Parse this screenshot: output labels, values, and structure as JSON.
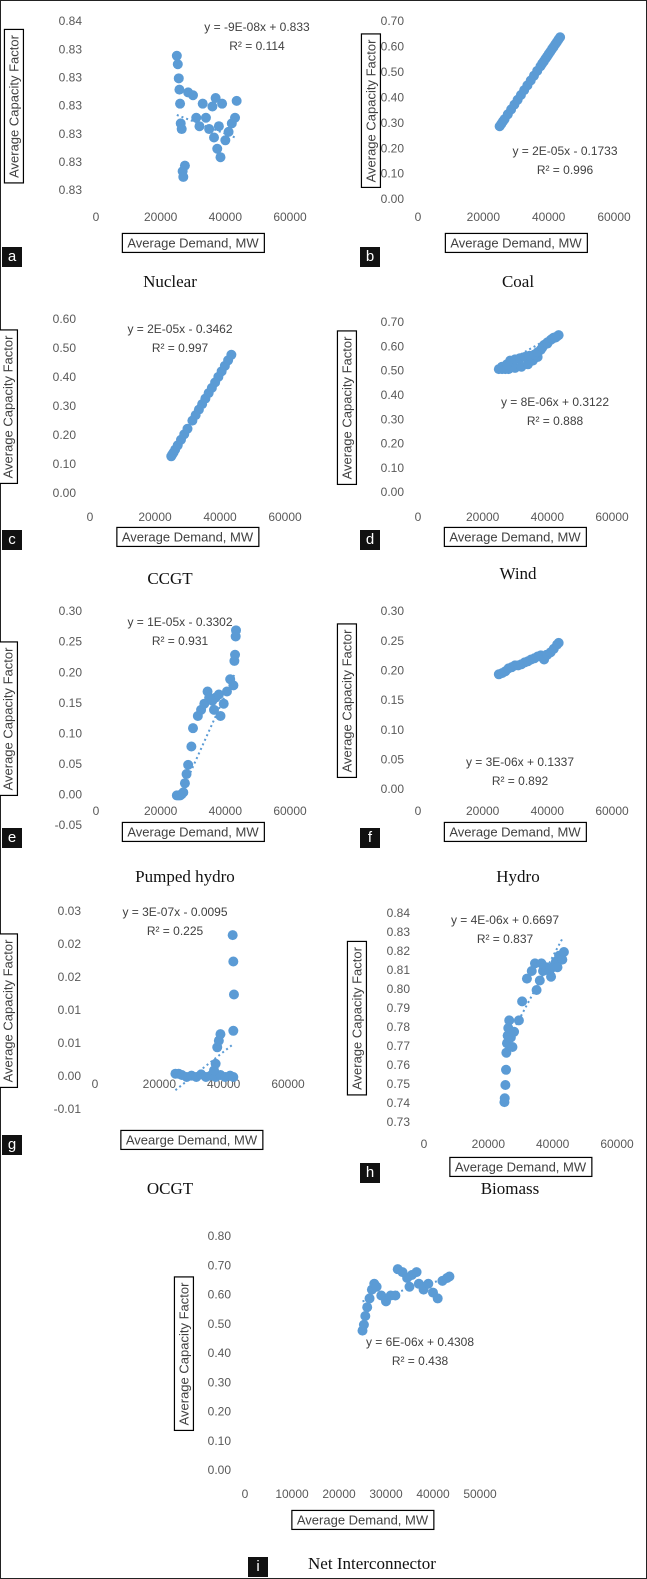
{
  "chart_data": [
    {
      "type": "scatter",
      "title": "Nuclear",
      "panel_label": "a",
      "xlabel": "Average Demand, MW",
      "ylabel": "Average Capacity Factor",
      "annotations": [
        "y = -9E-08x + 0.833",
        "R² = 0.114"
      ],
      "color": "#5b9bd5",
      "xlim": [
        0,
        60000
      ],
      "xticks": [
        0,
        20000,
        40000,
        60000
      ],
      "ylim": [
        0.829,
        0.835
      ],
      "yticks": [
        {
          "value": 0.829,
          "label": "0.83"
        },
        {
          "value": 0.83,
          "label": "0.83"
        },
        {
          "value": 0.831,
          "label": "0.83"
        },
        {
          "value": 0.832,
          "label": "0.83"
        },
        {
          "value": 0.833,
          "label": "0.83"
        },
        {
          "value": 0.834,
          "label": "0.83"
        },
        {
          "value": 0.835,
          "label": "0.84"
        }
      ],
      "x": [
        25000,
        25300,
        25600,
        25800,
        26000,
        26200,
        26500,
        26800,
        27000,
        27500,
        28500,
        30000,
        31000,
        32000,
        33000,
        34000,
        35000,
        36000,
        36500,
        37000,
        37500,
        38000,
        38500,
        39000,
        40000,
        41000,
        42000,
        43000,
        43500
      ],
      "values": [
        0.8338,
        0.8335,
        0.833,
        0.8326,
        0.8321,
        0.8314,
        0.8312,
        0.8297,
        0.8295,
        0.8299,
        0.8325,
        0.8324,
        0.8316,
        0.8313,
        0.8321,
        0.8316,
        0.8312,
        0.832,
        0.8309,
        0.8323,
        0.8305,
        0.8313,
        0.8302,
        0.8321,
        0.8308,
        0.8311,
        0.8314,
        0.8316,
        0.8322
      ],
      "trendline": {
        "x": [
          25000,
          43000
        ],
        "values": [
          0.8317,
          0.8309
        ]
      }
    },
    {
      "type": "scatter",
      "title": "Coal",
      "panel_label": "b",
      "xlabel": "Average Demand, MW",
      "ylabel": "Average Capacity Factor",
      "annotations": [
        "y = 2E-05x - 0.1733",
        "R² = 0.996"
      ],
      "color": "#5b9bd5",
      "xlim": [
        0,
        60000
      ],
      "xticks": [
        0,
        20000,
        40000,
        60000
      ],
      "ylim": [
        0,
        0.7
      ],
      "yticks": [
        {
          "value": 0,
          "label": "0.00"
        },
        {
          "value": 0.1,
          "label": "0.10"
        },
        {
          "value": 0.2,
          "label": "0.20"
        },
        {
          "value": 0.3,
          "label": "0.30"
        },
        {
          "value": 0.4,
          "label": "0.40"
        },
        {
          "value": 0.5,
          "label": "0.50"
        },
        {
          "value": 0.6,
          "label": "0.60"
        },
        {
          "value": 0.7,
          "label": "0.70"
        }
      ],
      "x": [
        25000,
        25500,
        26000,
        26500,
        27500,
        28500,
        29500,
        30500,
        31500,
        32500,
        33500,
        34500,
        35500,
        36500,
        37500,
        38000,
        38500,
        39000,
        39500,
        40000,
        40500,
        41000,
        41500,
        42000,
        42500,
        43000,
        43500
      ],
      "values": [
        0.29,
        0.299,
        0.309,
        0.318,
        0.337,
        0.356,
        0.375,
        0.394,
        0.413,
        0.432,
        0.451,
        0.47,
        0.489,
        0.508,
        0.526,
        0.536,
        0.545,
        0.555,
        0.564,
        0.574,
        0.583,
        0.593,
        0.602,
        0.612,
        0.621,
        0.631,
        0.64
      ],
      "trendline": {
        "x": [
          25000,
          43500
        ],
        "values": [
          0.29,
          0.64
        ]
      }
    },
    {
      "type": "scatter",
      "title": "CCGT",
      "panel_label": "c",
      "xlabel": "Average Demand, MW",
      "ylabel": "Average Capacity Factor",
      "annotations": [
        "y = 2E-05x - 0.3462",
        "R² = 0.997"
      ],
      "color": "#5b9bd5",
      "xlim": [
        0,
        60000
      ],
      "xticks": [
        0,
        20000,
        40000,
        60000
      ],
      "ylim": [
        0,
        0.6
      ],
      "yticks": [
        {
          "value": 0,
          "label": "0.00"
        },
        {
          "value": 0.1,
          "label": "0.10"
        },
        {
          "value": 0.2,
          "label": "0.20"
        },
        {
          "value": 0.3,
          "label": "0.30"
        },
        {
          "value": 0.4,
          "label": "0.40"
        },
        {
          "value": 0.5,
          "label": "0.50"
        },
        {
          "value": 0.6,
          "label": "0.60"
        }
      ],
      "x": [
        25000,
        25300,
        25700,
        26200,
        27000,
        28000,
        29000,
        30000,
        31500,
        32500,
        33500,
        34500,
        35500,
        36500,
        37500,
        38500,
        39500,
        40500,
        41500,
        42500,
        43500
      ],
      "values": [
        0.13,
        0.136,
        0.143,
        0.153,
        0.168,
        0.187,
        0.206,
        0.225,
        0.253,
        0.272,
        0.291,
        0.31,
        0.329,
        0.348,
        0.366,
        0.385,
        0.404,
        0.423,
        0.442,
        0.461,
        0.48
      ],
      "trendline": {
        "x": [
          25000,
          43500
        ],
        "values": [
          0.13,
          0.48
        ]
      }
    },
    {
      "type": "scatter",
      "title": "Wind",
      "panel_label": "d",
      "xlabel": "Average Demand, MW",
      "ylabel": "Average Capacity Factor",
      "annotations": [
        "y = 8E-06x + 0.3122",
        "R² = 0.888"
      ],
      "color": "#5b9bd5",
      "xlim": [
        0,
        60000
      ],
      "xticks": [
        0,
        20000,
        40000,
        60000
      ],
      "ylim": [
        0,
        0.7
      ],
      "yticks": [
        {
          "value": 0,
          "label": "0.00"
        },
        {
          "value": 0.1,
          "label": "0.10"
        },
        {
          "value": 0.2,
          "label": "0.20"
        },
        {
          "value": 0.3,
          "label": "0.30"
        },
        {
          "value": 0.4,
          "label": "0.40"
        },
        {
          "value": 0.5,
          "label": "0.50"
        },
        {
          "value": 0.6,
          "label": "0.60"
        },
        {
          "value": 0.7,
          "label": "0.70"
        }
      ],
      "x": [
        25000,
        26000,
        27000,
        28000,
        30000,
        32000,
        34000,
        35500,
        37000,
        38000,
        39000,
        40000,
        41000,
        42000,
        43000,
        43500,
        26000,
        27500,
        28500,
        30000,
        31500,
        33000,
        34500,
        36000,
        37000,
        38500,
        40000,
        41500,
        42500
      ],
      "values": [
        0.51,
        0.51,
        0.51,
        0.51,
        0.515,
        0.52,
        0.53,
        0.545,
        0.56,
        0.59,
        0.61,
        0.62,
        0.63,
        0.64,
        0.645,
        0.65,
        0.52,
        0.53,
        0.545,
        0.55,
        0.555,
        0.56,
        0.565,
        0.57,
        0.58,
        0.6,
        0.615,
        0.635,
        0.64
      ],
      "trendline": {
        "x": [
          25000,
          43500
        ],
        "values": [
          0.52,
          0.66
        ]
      }
    },
    {
      "type": "scatter",
      "title": "Pumped hydro",
      "panel_label": "e",
      "xlabel": "Average Demand, MW",
      "ylabel": "Average Capacity Factor",
      "annotations": [
        "y = 1E-05x - 0.3302",
        "R² = 0.931"
      ],
      "color": "#5b9bd5",
      "xlim": [
        0,
        60000
      ],
      "xticks": [
        0,
        20000,
        40000,
        60000
      ],
      "ylim": [
        -0.05,
        0.3
      ],
      "yticks": [
        -0.05,
        {
          "value": 0,
          "label": "0.00"
        },
        0.05,
        {
          "value": 0.1,
          "label": "0.10"
        },
        0.15,
        {
          "value": 0.2,
          "label": "0.20"
        },
        0.25,
        {
          "value": 0.3,
          "label": "0.30"
        }
      ],
      "x": [
        25000,
        25500,
        26000,
        26500,
        27000,
        27500,
        28000,
        28500,
        29500,
        30000,
        31500,
        32500,
        33500,
        34500,
        35000,
        36000,
        36500,
        37000,
        38000,
        38500,
        39500,
        40500,
        41500,
        42500,
        42800,
        43000,
        43200,
        43300
      ],
      "values": [
        0,
        0,
        0,
        0.002,
        0.005,
        0.02,
        0.035,
        0.05,
        0.08,
        0.11,
        0.13,
        0.14,
        0.15,
        0.17,
        0.16,
        0.155,
        0.14,
        0.16,
        0.165,
        0.13,
        0.15,
        0.17,
        0.19,
        0.18,
        0.22,
        0.23,
        0.26,
        0.27
      ],
      "trendline": {
        "x": [
          26000,
          43000
        ],
        "values": [
          0,
          0.2
        ]
      }
    },
    {
      "type": "scatter",
      "title": "Hydro",
      "panel_label": "f",
      "xlabel": "Average Demand, MW",
      "ylabel": "Average Capacity Factor",
      "annotations": [
        "y = 3E-06x + 0.1337",
        "R² = 0.892"
      ],
      "color": "#5b9bd5",
      "xlim": [
        0,
        60000
      ],
      "xticks": [
        0,
        20000,
        40000,
        60000
      ],
      "ylim": [
        0,
        0.3
      ],
      "yticks": [
        {
          "value": 0,
          "label": "0.00"
        },
        0.05,
        {
          "value": 0.1,
          "label": "0.10"
        },
        0.15,
        {
          "value": 0.2,
          "label": "0.20"
        },
        0.25,
        {
          "value": 0.3,
          "label": "0.30"
        }
      ],
      "x": [
        25000,
        26000,
        27000,
        28000,
        29000,
        30000,
        31000,
        32000,
        33000,
        34000,
        35000,
        36000,
        37000,
        38000,
        39000,
        40000,
        41000,
        42000,
        43000,
        43500
      ],
      "values": [
        0.195,
        0.197,
        0.2,
        0.205,
        0.207,
        0.21,
        0.21,
        0.212,
        0.215,
        0.217,
        0.22,
        0.222,
        0.225,
        0.227,
        0.22,
        0.228,
        0.232,
        0.238,
        0.245,
        0.248
      ],
      "trendline": {
        "x": [
          25000,
          43500
        ],
        "values": [
          0.197,
          0.245
        ]
      }
    },
    {
      "type": "scatter",
      "title": "OCGT",
      "panel_label": "g",
      "xlabel": "Avearge Demand, MW",
      "ylabel": "Average Capacity Factor",
      "annotations": [
        "y = 3E-07x - 0.0095",
        "R² = 0.225"
      ],
      "color": "#5b9bd5",
      "xlim": [
        0,
        60000
      ],
      "xticks": [
        0,
        20000,
        40000,
        60000
      ],
      "ylim": [
        -0.005,
        0.025
      ],
      "yticks": [
        {
          "value": -0.005,
          "label": "-0.01"
        },
        {
          "value": 0,
          "label": "0.00"
        },
        {
          "value": 0.005,
          "label": "0.01"
        },
        {
          "value": 0.01,
          "label": "0.01"
        },
        {
          "value": 0.015,
          "label": "0.02"
        },
        {
          "value": 0.02,
          "label": "0.02"
        },
        {
          "value": 0.025,
          "label": "0.03"
        }
      ],
      "x": [
        25000,
        26000,
        27000,
        28500,
        30000,
        31500,
        33000,
        34500,
        36000,
        37500,
        39000,
        40500,
        42000,
        43000,
        37000,
        37500,
        38000,
        38500,
        39000,
        43000,
        43200,
        43000,
        42800
      ],
      "values": [
        0.0005,
        0.0005,
        0.0003,
        0,
        0.0002,
        0,
        0.0004,
        0,
        0.0002,
        0,
        0.0003,
        0,
        0.0002,
        0,
        0.001,
        0.002,
        0.0045,
        0.0055,
        0.0065,
        0.007,
        0.0125,
        0.0175,
        0.0215
      ],
      "trendline": {
        "x": [
          25000,
          43000
        ],
        "values": [
          -0.002,
          0.005
        ]
      }
    },
    {
      "type": "scatter",
      "title": "Biomass",
      "panel_label": "h",
      "xlabel": "Average Demand, MW",
      "ylabel": "Average Capacity Factor",
      "annotations": [
        "y = 4E-06x + 0.6697",
        "R² = 0.837"
      ],
      "color": "#5b9bd5",
      "xlim": [
        0,
        60000
      ],
      "xticks": [
        0,
        20000,
        40000,
        60000
      ],
      "ylim": [
        0.73,
        0.84
      ],
      "yticks": [
        0.73,
        0.74,
        0.75,
        0.76,
        0.77,
        0.78,
        0.79,
        {
          "value": 0.8,
          "label": "0.80"
        },
        0.81,
        0.82,
        0.83,
        0.84
      ],
      "x": [
        25000,
        25100,
        25300,
        25500,
        25600,
        25800,
        26000,
        26200,
        26500,
        27000,
        27500,
        28000,
        29500,
        30500,
        32000,
        33500,
        34500,
        35000,
        36000,
        37000,
        38000,
        39000,
        40000,
        41000,
        42000,
        43000,
        43500,
        36500,
        39500,
        41500
      ],
      "values": [
        0.741,
        0.743,
        0.75,
        0.758,
        0.767,
        0.772,
        0.776,
        0.78,
        0.784,
        0.775,
        0.77,
        0.778,
        0.784,
        0.794,
        0.806,
        0.81,
        0.814,
        0.8,
        0.805,
        0.81,
        0.812,
        0.81,
        0.812,
        0.815,
        0.818,
        0.816,
        0.82,
        0.814,
        0.807,
        0.812
      ],
      "trendline": {
        "x": [
          25000,
          43000
        ],
        "values": [
          0.77,
          0.827
        ]
      }
    },
    {
      "type": "scatter",
      "title": "Net Interconnector",
      "panel_label": "i",
      "xlabel": "Average Demand,  MW",
      "ylabel": "Average Capacity Factor",
      "annotations": [
        "y = 6E-06x + 0.4308",
        "R² = 0.438"
      ],
      "color": "#5b9bd5",
      "xlim": [
        0,
        50000
      ],
      "xticks": [
        0,
        10000,
        20000,
        30000,
        40000,
        50000
      ],
      "ylim": [
        0,
        0.8
      ],
      "yticks": [
        {
          "value": 0,
          "label": "0.00"
        },
        {
          "value": 0.1,
          "label": "0.10"
        },
        {
          "value": 0.2,
          "label": "0.20"
        },
        {
          "value": 0.3,
          "label": "0.30"
        },
        {
          "value": 0.4,
          "label": "0.40"
        },
        {
          "value": 0.5,
          "label": "0.50"
        },
        {
          "value": 0.6,
          "label": "0.60"
        },
        {
          "value": 0.7,
          "label": "0.70"
        },
        {
          "value": 0.8,
          "label": "0.80"
        }
      ],
      "x": [
        25000,
        25300,
        25600,
        26000,
        26500,
        27000,
        27500,
        28000,
        29000,
        30000,
        31000,
        32500,
        33500,
        34500,
        35500,
        36500,
        37000,
        38000,
        39000,
        40000,
        41000,
        42000,
        43000,
        43500,
        32000,
        35000
      ],
      "values": [
        0.48,
        0.5,
        0.53,
        0.56,
        0.59,
        0.62,
        0.64,
        0.63,
        0.6,
        0.58,
        0.6,
        0.69,
        0.68,
        0.66,
        0.67,
        0.68,
        0.64,
        0.62,
        0.64,
        0.61,
        0.59,
        0.65,
        0.66,
        0.665,
        0.6,
        0.63
      ],
      "trendline": {
        "x": [
          25000,
          43500
        ],
        "values": [
          0.58,
          0.66
        ]
      }
    }
  ]
}
